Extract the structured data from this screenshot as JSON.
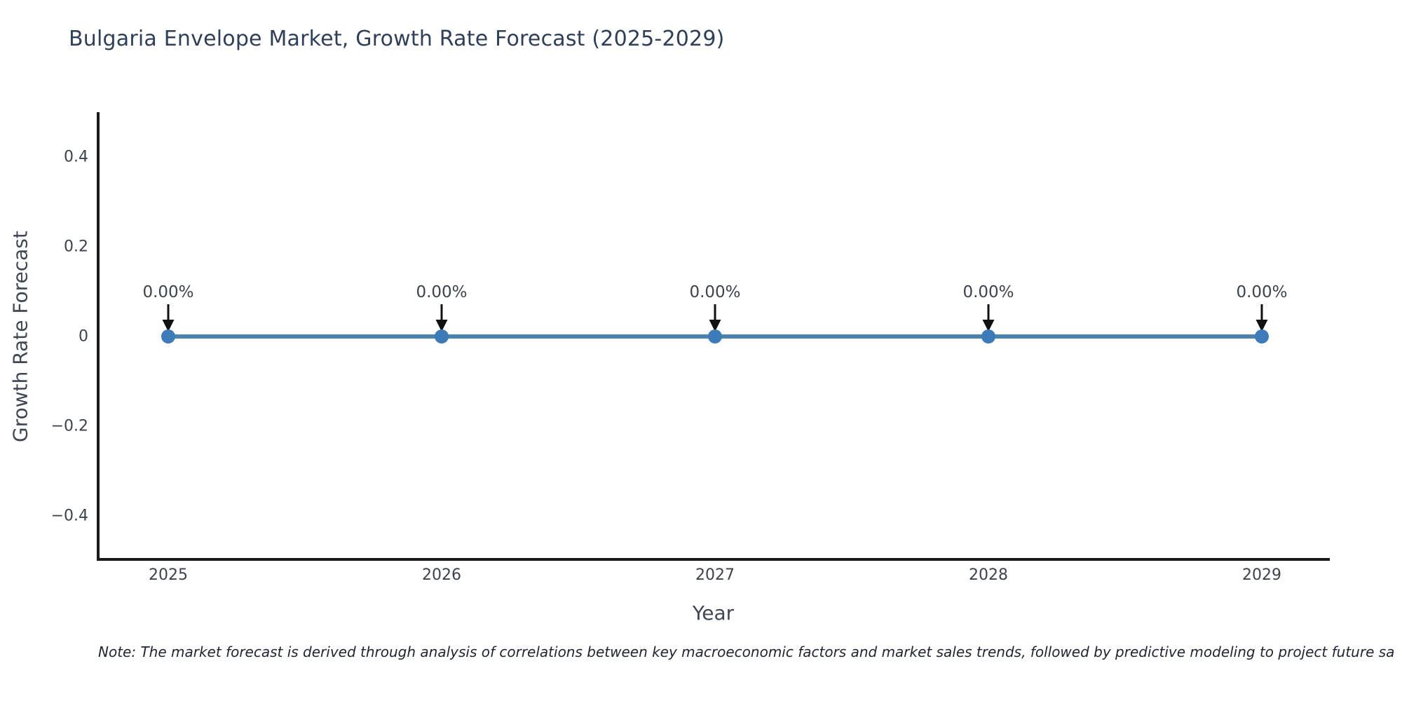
{
  "title": "Bulgaria Envelope Market, Growth Rate Forecast (2025-2029)",
  "note": "Note: The market forecast is derived through analysis of correlations between key macroeconomic factors and market sales trends, followed by predictive modeling to project future sa",
  "chart_data": {
    "type": "line",
    "title": "Bulgaria Envelope Market, Growth Rate Forecast (2025-2029)",
    "x": [
      2025,
      2026,
      2027,
      2028,
      2029
    ],
    "xtick_labels": [
      "2025",
      "2026",
      "2027",
      "2028",
      "2029"
    ],
    "series": [
      {
        "name": "Growth Rate Forecast",
        "values": [
          0,
          0,
          0,
          0,
          0
        ]
      }
    ],
    "point_labels": [
      "0.00%",
      "0.00%",
      "0.00%",
      "0.00%",
      "0.00%"
    ],
    "xlabel": "Year",
    "ylabel": "Growth Rate Forecast",
    "ylim": [
      -0.5,
      0.5
    ],
    "yticks": [
      0.4,
      0.2,
      0,
      -0.2,
      -0.4
    ],
    "ytick_labels": [
      "0.4",
      "0.2",
      "0",
      "−0.2",
      "−0.4"
    ],
    "grid": false,
    "legend": "none",
    "annotation_style": "arrow-down-to-point",
    "colors": {
      "line": "#4d84ae",
      "marker": "#3c7ab8",
      "arrow": "#111111",
      "axis": "#1a1a1a",
      "title_text": "#2e3f57",
      "axis_label_text": "#3f4654",
      "tick_text": "#3d434e",
      "note_text": "#1f2430"
    }
  }
}
